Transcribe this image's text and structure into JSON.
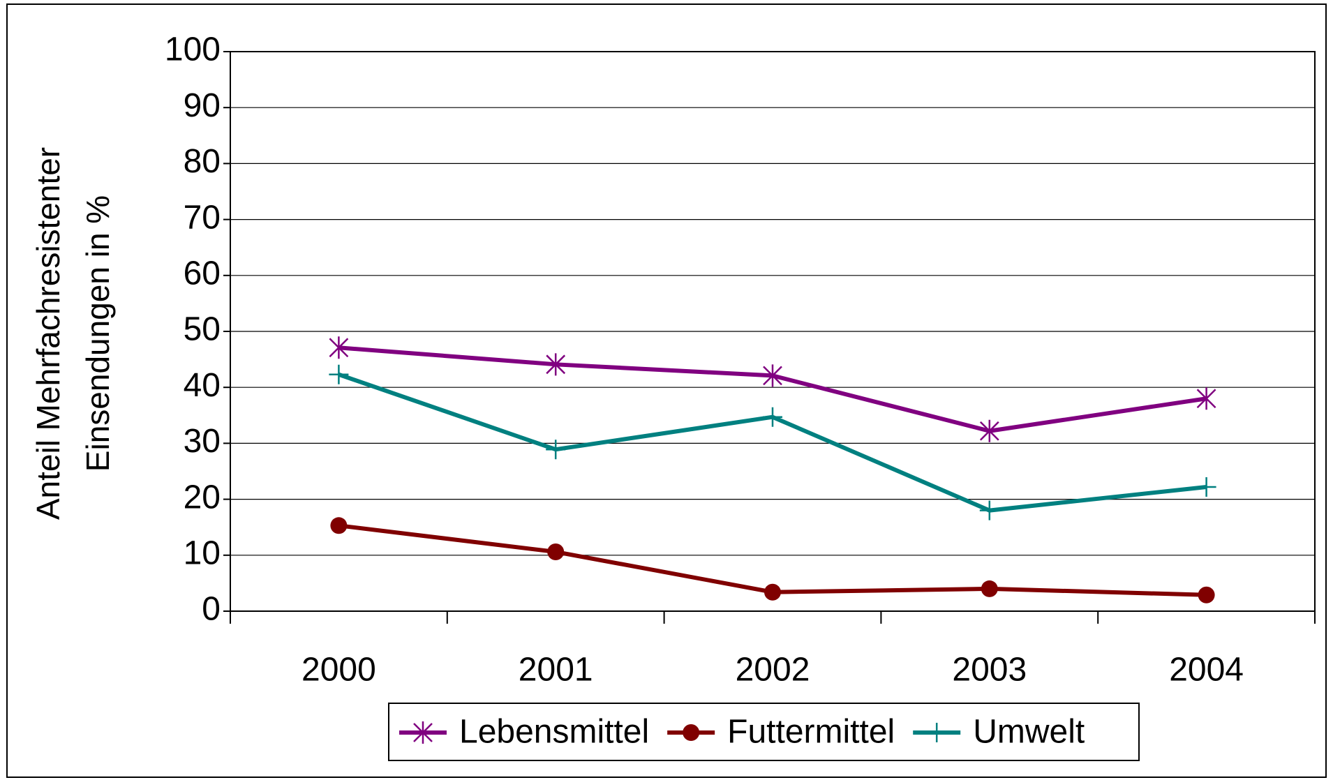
{
  "chart_data": {
    "type": "line",
    "y_label": [
      "Anteil Mehrfachresistenter",
      "Einsendungen in %"
    ],
    "categories": [
      "2000",
      "2001",
      "2002",
      "2003",
      "2004"
    ],
    "series": [
      {
        "name": "Lebensmittel",
        "color": "#800080",
        "marker": "star",
        "values": [
          47.1,
          44.1,
          42.1,
          32.2,
          38.0
        ]
      },
      {
        "name": "Futtermittel",
        "color": "#800000",
        "marker": "circle",
        "values": [
          15.3,
          10.6,
          3.4,
          4.0,
          2.9
        ]
      },
      {
        "name": "Umwelt",
        "color": "#008080",
        "marker": "plus",
        "values": [
          42.3,
          28.9,
          34.7,
          18.0,
          22.2
        ]
      }
    ],
    "ylim": [
      0,
      100
    ],
    "yticks": [
      0,
      10,
      20,
      30,
      40,
      50,
      60,
      70,
      80,
      90,
      100
    ],
    "grid": true,
    "legend": "bottom"
  }
}
